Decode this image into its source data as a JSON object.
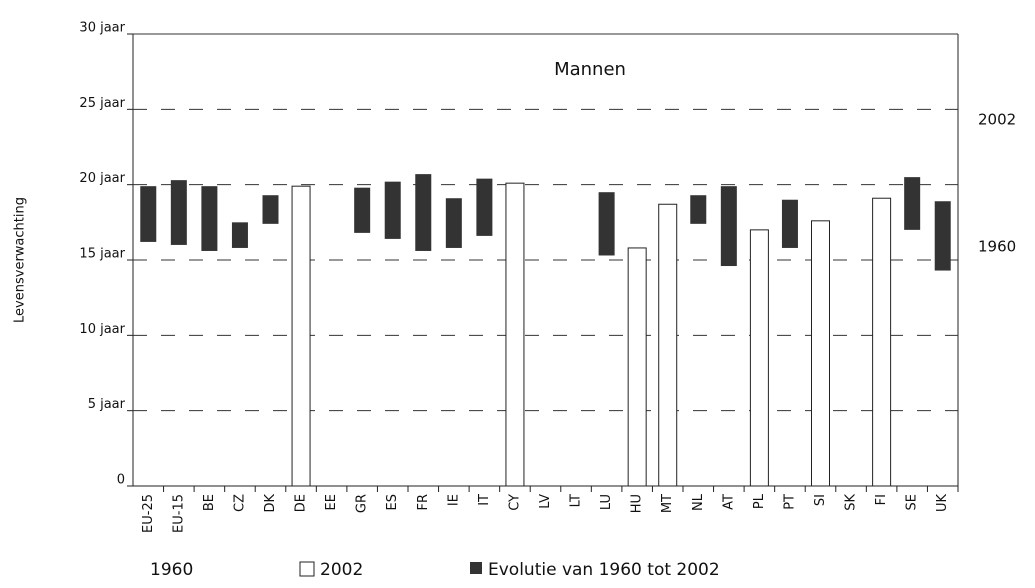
{
  "chart_data": {
    "type": "floating_bar",
    "title": "Mannen",
    "y_label": "Levensverwachting",
    "categories": [
      "EU-25",
      "EU-15",
      "BE",
      "CZ",
      "DK",
      "DE",
      "EE",
      "GR",
      "ES",
      "FR",
      "IE",
      "IT",
      "CY",
      "LV",
      "LT",
      "LU",
      "HU",
      "MT",
      "NL",
      "AT",
      "PL",
      "PT",
      "SI",
      "SK",
      "FI",
      "SE",
      "UK"
    ],
    "series": [
      {
        "name": "1960",
        "color": "#333333",
        "values": [
          16.2,
          16.0,
          15.6,
          15.8,
          17.4,
          null,
          null,
          16.8,
          16.4,
          15.6,
          15.8,
          16.6,
          null,
          null,
          null,
          15.3,
          null,
          null,
          17.4,
          14.6,
          null,
          15.8,
          null,
          null,
          null,
          17.0,
          14.3
        ]
      },
      {
        "name": "2002",
        "color": "#ffffff",
        "values": [
          19.9,
          20.3,
          19.9,
          17.5,
          19.3,
          19.9,
          null,
          19.8,
          20.2,
          20.7,
          19.1,
          20.4,
          20.1,
          null,
          null,
          19.5,
          15.8,
          18.7,
          19.3,
          19.9,
          17.0,
          19.0,
          17.6,
          null,
          19.1,
          20.5,
          18.9
        ]
      }
    ],
    "evolution_label": "Evolutie van 1960 tot 2002",
    "right_labels": [
      "2002",
      "1960"
    ],
    "ylim": [
      0,
      30
    ],
    "yticks": [
      0,
      {
        "value": 5,
        "label": "5 jaar"
      },
      {
        "value": 10,
        "label": "10 jaar"
      },
      {
        "value": 15,
        "label": "15 jaar"
      },
      {
        "value": 20,
        "label": "20 jaar"
      },
      {
        "value": 25,
        "label": "25 jaar"
      },
      {
        "value": 30,
        "label": "30 jaar"
      }
    ],
    "grid": true
  }
}
